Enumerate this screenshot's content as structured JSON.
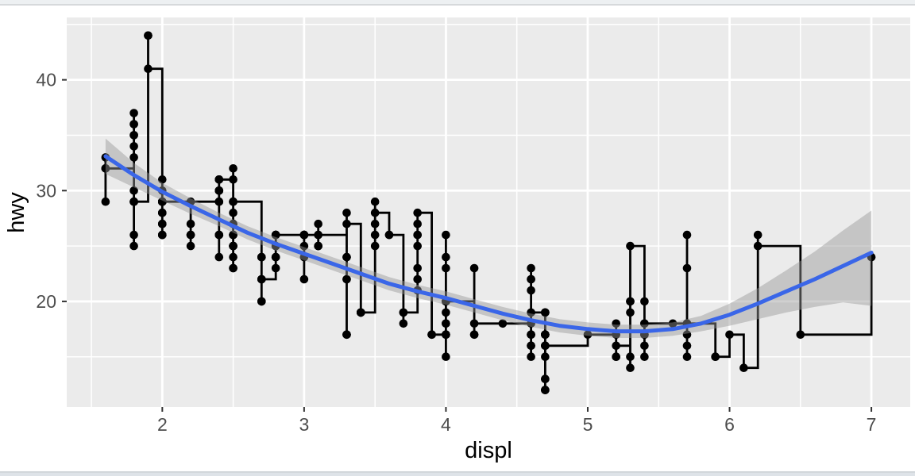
{
  "window": {
    "top_edge_color": "#edf0f2",
    "bottom_edge_color": "#dee3e8",
    "background": "#ffffff"
  },
  "chart_data": {
    "type": "scatter",
    "layers": [
      "points",
      "step-line",
      "smooth-ribbon",
      "smooth-line"
    ],
    "title": "",
    "xlabel": "displ",
    "ylabel": "hwy",
    "xlim": [
      1.326,
      7.274
    ],
    "ylim": [
      10.47,
      45.63
    ],
    "x_ticks": [
      2,
      3,
      4,
      5,
      6,
      7
    ],
    "y_ticks": [
      20,
      30,
      40
    ],
    "x_minor": [
      1.5,
      2.5,
      3.5,
      4.5,
      5.5,
      6.5
    ],
    "y_minor": [
      15,
      25,
      35,
      45
    ],
    "grid": true,
    "legend": "none",
    "panel_bg": "#EBEBEB",
    "grid_color": "#FFFFFF",
    "point_color": "#000000",
    "step_color": "#000000",
    "smooth_color": "#3A66E8",
    "ribbon_color": "rgba(151,151,151,0.45)",
    "tick_color": "#333333",
    "tick_label_color": "#4D4D4D",
    "axis_title_color": "#000000",
    "points": [
      [
        1.8,
        29
      ],
      [
        1.8,
        29
      ],
      [
        2.0,
        31
      ],
      [
        2.0,
        30
      ],
      [
        2.8,
        26
      ],
      [
        2.8,
        26
      ],
      [
        3.1,
        27
      ],
      [
        1.8,
        26
      ],
      [
        1.8,
        25
      ],
      [
        2.0,
        28
      ],
      [
        2.0,
        27
      ],
      [
        2.8,
        25
      ],
      [
        2.8,
        25
      ],
      [
        3.1,
        25
      ],
      [
        3.1,
        25
      ],
      [
        2.8,
        24
      ],
      [
        3.1,
        25
      ],
      [
        4.2,
        23
      ],
      [
        5.3,
        20
      ],
      [
        5.3,
        15
      ],
      [
        5.3,
        20
      ],
      [
        5.7,
        17
      ],
      [
        6.0,
        17
      ],
      [
        5.7,
        26
      ],
      [
        5.7,
        23
      ],
      [
        6.2,
        26
      ],
      [
        6.2,
        25
      ],
      [
        7.0,
        24
      ],
      [
        5.3,
        14
      ],
      [
        5.3,
        19
      ],
      [
        5.7,
        15
      ],
      [
        6.5,
        17
      ],
      [
        2.4,
        26
      ],
      [
        2.4,
        30
      ],
      [
        3.1,
        26
      ],
      [
        3.5,
        29
      ],
      [
        3.6,
        26
      ],
      [
        2.4,
        24
      ],
      [
        3.0,
        24
      ],
      [
        3.3,
        22
      ],
      [
        3.3,
        22
      ],
      [
        3.3,
        24
      ],
      [
        3.3,
        24
      ],
      [
        3.3,
        17
      ],
      [
        3.8,
        22
      ],
      [
        3.8,
        21
      ],
      [
        3.8,
        23
      ],
      [
        4.0,
        23
      ],
      [
        3.7,
        19
      ],
      [
        3.7,
        18
      ],
      [
        3.9,
        17
      ],
      [
        3.9,
        17
      ],
      [
        4.7,
        19
      ],
      [
        4.7,
        19
      ],
      [
        4.7,
        12
      ],
      [
        5.2,
        17
      ],
      [
        5.2,
        15
      ],
      [
        3.9,
        17
      ],
      [
        4.7,
        17
      ],
      [
        4.7,
        12
      ],
      [
        4.7,
        17
      ],
      [
        4.7,
        16
      ],
      [
        5.2,
        18
      ],
      [
        5.9,
        15
      ],
      [
        4.7,
        17
      ],
      [
        4.7,
        15
      ],
      [
        4.7,
        13
      ],
      [
        4.7,
        13
      ],
      [
        4.7,
        17
      ],
      [
        4.7,
        16
      ],
      [
        5.2,
        15
      ],
      [
        5.2,
        16
      ],
      [
        5.7,
        16
      ],
      [
        5.9,
        15
      ],
      [
        4.6,
        17
      ],
      [
        5.4,
        17
      ],
      [
        5.4,
        18
      ],
      [
        4.0,
        17
      ],
      [
        4.0,
        17
      ],
      [
        4.0,
        17
      ],
      [
        4.0,
        18
      ],
      [
        4.6,
        17
      ],
      [
        4.6,
        18
      ],
      [
        4.2,
        17
      ],
      [
        4.2,
        17
      ],
      [
        4.6,
        15
      ],
      [
        4.6,
        16
      ],
      [
        4.6,
        17
      ],
      [
        5.4,
        15
      ],
      [
        5.4,
        17
      ],
      [
        3.8,
        26
      ],
      [
        3.8,
        25
      ],
      [
        4.0,
        26
      ],
      [
        4.0,
        24
      ],
      [
        4.6,
        21
      ],
      [
        4.6,
        22
      ],
      [
        4.6,
        23
      ],
      [
        4.6,
        22
      ],
      [
        5.4,
        20
      ],
      [
        1.6,
        33
      ],
      [
        1.6,
        32
      ],
      [
        1.6,
        32
      ],
      [
        1.6,
        29
      ],
      [
        1.6,
        32
      ],
      [
        1.8,
        34
      ],
      [
        1.8,
        36
      ],
      [
        1.8,
        36
      ],
      [
        2.0,
        29
      ],
      [
        2.4,
        26
      ],
      [
        2.4,
        26
      ],
      [
        2.4,
        30
      ],
      [
        2.4,
        31
      ],
      [
        2.5,
        26
      ],
      [
        2.5,
        26
      ],
      [
        3.3,
        28
      ],
      [
        2.0,
        26
      ],
      [
        2.0,
        27
      ],
      [
        2.0,
        28
      ],
      [
        2.0,
        27
      ],
      [
        2.7,
        24
      ],
      [
        2.7,
        24
      ],
      [
        2.7,
        24
      ],
      [
        3.0,
        22
      ],
      [
        3.7,
        19
      ],
      [
        4.0,
        20
      ],
      [
        4.7,
        17
      ],
      [
        4.7,
        12
      ],
      [
        4.7,
        19
      ],
      [
        5.7,
        18
      ],
      [
        6.1,
        14
      ],
      [
        4.0,
        15
      ],
      [
        4.2,
        18
      ],
      [
        4.4,
        18
      ],
      [
        4.6,
        16
      ],
      [
        5.4,
        17
      ],
      [
        5.4,
        16
      ],
      [
        5.4,
        18
      ],
      [
        4.0,
        17
      ],
      [
        4.0,
        19
      ],
      [
        4.6,
        19
      ],
      [
        5.0,
        17
      ],
      [
        2.4,
        29
      ],
      [
        2.4,
        29
      ],
      [
        2.5,
        31
      ],
      [
        2.5,
        32
      ],
      [
        3.5,
        26
      ],
      [
        3.5,
        27
      ],
      [
        3.0,
        26
      ],
      [
        3.0,
        25
      ],
      [
        3.5,
        25
      ],
      [
        3.3,
        17
      ],
      [
        3.3,
        17
      ],
      [
        4.0,
        20
      ],
      [
        5.6,
        18
      ],
      [
        3.1,
        26
      ],
      [
        3.8,
        26
      ],
      [
        3.8,
        27
      ],
      [
        3.8,
        28
      ],
      [
        5.3,
        25
      ],
      [
        2.5,
        25
      ],
      [
        2.5,
        24
      ],
      [
        2.5,
        27
      ],
      [
        2.5,
        25
      ],
      [
        2.5,
        26
      ],
      [
        2.5,
        23
      ],
      [
        2.2,
        26
      ],
      [
        2.2,
        25
      ],
      [
        2.5,
        25
      ],
      [
        2.5,
        27
      ],
      [
        2.5,
        25
      ],
      [
        2.5,
        25
      ],
      [
        2.5,
        26
      ],
      [
        2.5,
        23
      ],
      [
        2.7,
        20
      ],
      [
        2.7,
        20
      ],
      [
        3.4,
        19
      ],
      [
        3.4,
        19
      ],
      [
        4.0,
        20
      ],
      [
        4.7,
        17
      ],
      [
        2.2,
        26
      ],
      [
        2.2,
        27
      ],
      [
        2.4,
        30
      ],
      [
        2.4,
        31
      ],
      [
        3.0,
        26
      ],
      [
        3.0,
        26
      ],
      [
        3.5,
        28
      ],
      [
        2.2,
        26
      ],
      [
        2.2,
        29
      ],
      [
        2.4,
        30
      ],
      [
        2.4,
        31
      ],
      [
        3.0,
        26
      ],
      [
        3.0,
        26
      ],
      [
        3.3,
        27
      ],
      [
        1.8,
        30
      ],
      [
        1.8,
        33
      ],
      [
        1.8,
        35
      ],
      [
        1.8,
        35
      ],
      [
        1.8,
        37
      ],
      [
        4.7,
        16
      ],
      [
        5.7,
        18
      ],
      [
        2.7,
        22
      ],
      [
        2.7,
        22
      ],
      [
        2.7,
        22
      ],
      [
        3.4,
        19
      ],
      [
        3.4,
        19
      ],
      [
        4.0,
        18
      ],
      [
        4.0,
        20
      ],
      [
        2.0,
        29
      ],
      [
        2.0,
        26
      ],
      [
        2.0,
        29
      ],
      [
        2.0,
        29
      ],
      [
        2.8,
        24
      ],
      [
        1.9,
        44
      ],
      [
        2.0,
        29
      ],
      [
        2.0,
        26
      ],
      [
        2.0,
        29
      ],
      [
        2.0,
        29
      ],
      [
        2.5,
        29
      ],
      [
        2.5,
        29
      ],
      [
        2.8,
        24
      ],
      [
        2.8,
        23
      ],
      [
        1.9,
        44
      ],
      [
        1.9,
        41
      ],
      [
        2.0,
        29
      ],
      [
        2.0,
        26
      ],
      [
        2.5,
        28
      ],
      [
        2.5,
        29
      ],
      [
        1.8,
        29
      ],
      [
        1.8,
        29
      ],
      [
        2.0,
        28
      ],
      [
        2.0,
        29
      ],
      [
        2.8,
        26
      ],
      [
        2.8,
        26
      ],
      [
        3.6,
        26
      ]
    ],
    "smooth": {
      "x": [
        1.6,
        1.8,
        2.0,
        2.2,
        2.4,
        2.6,
        2.8,
        3.0,
        3.2,
        3.4,
        3.6,
        3.8,
        4.0,
        4.2,
        4.4,
        4.6,
        4.8,
        5.0,
        5.2,
        5.4,
        5.6,
        5.8,
        6.0,
        6.2,
        6.4,
        6.6,
        6.8,
        7.0
      ],
      "y": [
        33.1,
        31.4,
        29.9,
        28.6,
        27.4,
        26.2,
        25.2,
        24.3,
        23.4,
        22.5,
        21.6,
        20.9,
        20.3,
        19.6,
        18.9,
        18.3,
        17.8,
        17.5,
        17.3,
        17.3,
        17.5,
        18.0,
        18.8,
        19.8,
        20.9,
        22.0,
        23.2,
        24.4
      ],
      "ymin": [
        31.5,
        30.3,
        29.1,
        27.9,
        26.8,
        25.6,
        24.6,
        23.7,
        22.8,
        21.9,
        21.0,
        20.3,
        19.7,
        19.0,
        18.3,
        17.7,
        17.2,
        16.9,
        16.7,
        16.7,
        16.9,
        17.3,
        17.8,
        18.4,
        19.0,
        19.5,
        19.9,
        19.6
      ],
      "ymax": [
        34.7,
        32.5,
        30.7,
        29.3,
        28.0,
        26.8,
        25.8,
        24.9,
        24.0,
        23.1,
        22.2,
        21.5,
        20.9,
        20.2,
        19.5,
        18.9,
        18.4,
        18.1,
        17.9,
        17.9,
        18.1,
        18.7,
        19.8,
        21.2,
        22.8,
        24.5,
        26.4,
        28.2
      ]
    }
  }
}
